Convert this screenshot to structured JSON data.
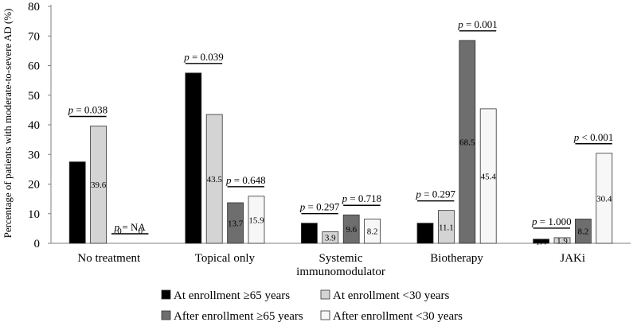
{
  "chart_data": {
    "type": "bar",
    "ylabel": "Percentage of patients with moderate-to-severe AD (%)",
    "ylim": [
      0,
      80
    ],
    "yticks": [
      0,
      10,
      20,
      30,
      40,
      50,
      60,
      70,
      80
    ],
    "grid": false,
    "legend_position": "bottom",
    "categories": [
      [
        "No treatment"
      ],
      [
        "Topical only"
      ],
      [
        "Systemic",
        "immunomodulator"
      ],
      [
        "Biotherapy"
      ],
      [
        "JAKi"
      ]
    ],
    "series": [
      {
        "name": "At enrollment ≥65 years",
        "color": "#000000",
        "values": [
          27.5,
          57.5,
          6.8,
          6.8,
          1.4
        ]
      },
      {
        "name": "At enrollment <30 years",
        "color": "#d4d4d4",
        "values": [
          39.6,
          43.5,
          3.9,
          11.1,
          1.9
        ]
      },
      {
        "name": "After enrollment ≥65 years",
        "color": "#6e6e6e",
        "values": [
          0,
          13.7,
          9.6,
          68.5,
          8.2
        ]
      },
      {
        "name": "After enrollment <30 years",
        "color": "#f7f7f7",
        "values": [
          0,
          15.9,
          8.2,
          45.4,
          30.4
        ]
      }
    ],
    "data_labels": [
      [
        "27.5",
        "39.6",
        "0",
        "0"
      ],
      [
        "57.5",
        "43.5",
        "13.7",
        "15.9"
      ],
      [
        "6.8",
        "3.9",
        "9.6",
        "8.2"
      ],
      [
        "6.8",
        "11.1",
        "68.5",
        "45.4"
      ],
      [
        "1.4",
        "1.9",
        "8.2",
        "30.4"
      ]
    ],
    "annotations": [
      {
        "category": 0,
        "pair": "at_enrollment",
        "text": "p = 0.038"
      },
      {
        "category": 0,
        "pair": "after_enrollment",
        "text": "p = NA"
      },
      {
        "category": 1,
        "pair": "at_enrollment",
        "text": "p = 0.039"
      },
      {
        "category": 1,
        "pair": "after_enrollment",
        "text": "p = 0.648"
      },
      {
        "category": 2,
        "pair": "at_enrollment",
        "text": "p = 0.297"
      },
      {
        "category": 2,
        "pair": "after_enrollment",
        "text": "p = 0.718"
      },
      {
        "category": 3,
        "pair": "at_enrollment",
        "text": "p = 0.297"
      },
      {
        "category": 3,
        "pair": "after_enrollment",
        "text": "p = 0.001"
      },
      {
        "category": 4,
        "pair": "at_enrollment",
        "text": "p = 1.000"
      },
      {
        "category": 4,
        "pair": "after_enrollment",
        "text": "p < 0.001"
      }
    ]
  }
}
